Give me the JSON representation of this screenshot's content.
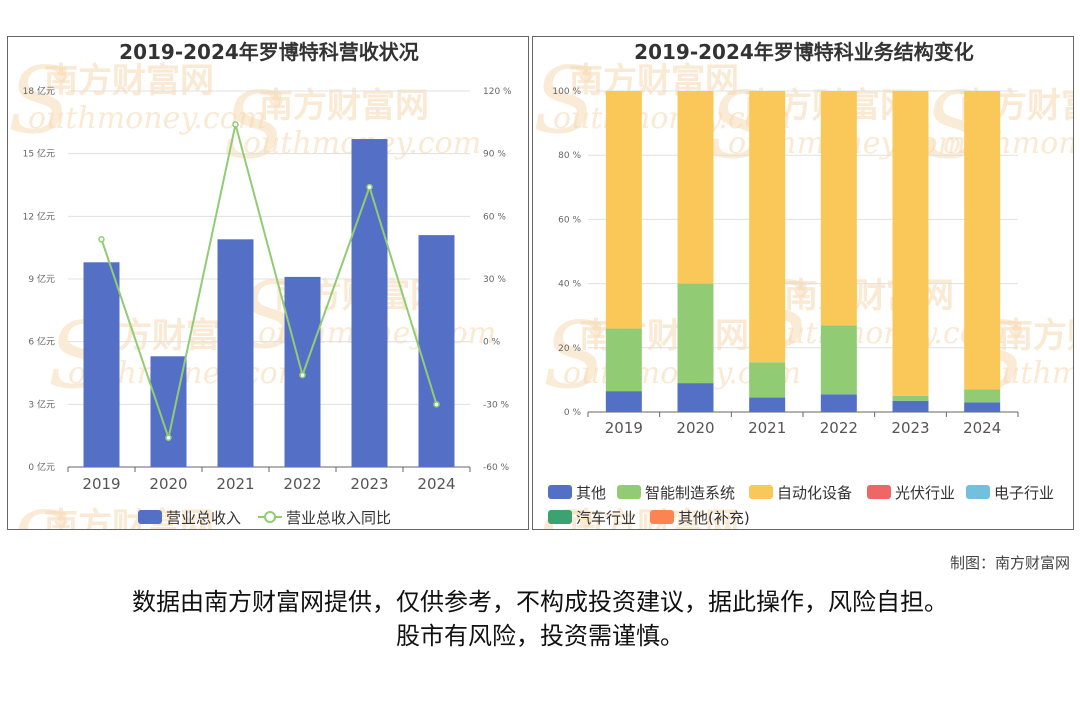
{
  "watermark": {
    "cn": "南方财富网",
    "en": "outhmoney.com",
    "letter": "S"
  },
  "colors": {
    "bar_blue": "#5470c6",
    "line_green": "#91cc75",
    "grid": "#e0e0e0",
    "axis": "#666666",
    "watermark": "#f6d7ae"
  },
  "chart_data": [
    {
      "type": "bar",
      "title": "2019-2024年罗博特科营收状况",
      "categories": [
        "2019",
        "2020",
        "2021",
        "2022",
        "2023",
        "2024"
      ],
      "y_left": {
        "ticks": [
          "0 亿元",
          "3 亿元",
          "6 亿元",
          "9 亿元",
          "12 亿元",
          "15 亿元",
          "18 亿元"
        ],
        "min": 0,
        "max": 18,
        "unit": "亿元"
      },
      "y_right": {
        "ticks": [
          "-60 %",
          "-30 %",
          "0 %",
          "30 %",
          "60 %",
          "90 %",
          "120 %"
        ],
        "min": -60,
        "max": 120,
        "unit": "%"
      },
      "series": [
        {
          "name": "营业总收入",
          "type": "bar",
          "axis": "left",
          "color": "#5470c6",
          "values": [
            9.8,
            5.3,
            10.9,
            9.1,
            15.7,
            11.1
          ]
        },
        {
          "name": "营业总收入同比",
          "type": "line",
          "axis": "right",
          "color": "#91cc75",
          "values": [
            49,
            -46,
            104,
            -16,
            74,
            -30
          ]
        }
      ],
      "legend_position": "bottom",
      "grid": true
    },
    {
      "type": "bar",
      "stacked": true,
      "title": "2019-2024年罗博特科业务结构变化",
      "categories": [
        "2019",
        "2020",
        "2021",
        "2022",
        "2023",
        "2024"
      ],
      "y": {
        "ticks": [
          "0 %",
          "20 %",
          "40 %",
          "60 %",
          "80 %",
          "100 %"
        ],
        "min": 0,
        "max": 100,
        "unit": "%"
      },
      "series": [
        {
          "name": "其他",
          "color": "#5470c6",
          "values": [
            6.5,
            9,
            4.5,
            5.5,
            3.5,
            3
          ]
        },
        {
          "name": "智能制造系统",
          "color": "#91cc75",
          "values": [
            19.5,
            31,
            11,
            21.5,
            1.5,
            4
          ]
        },
        {
          "name": "自动化设备",
          "color": "#fac858",
          "values": [
            74,
            60,
            84.5,
            73,
            95,
            93
          ]
        },
        {
          "name": "光伏行业",
          "color": "#ee6666",
          "values": [
            0,
            0,
            0,
            0,
            0,
            0
          ]
        },
        {
          "name": "电子行业",
          "color": "#73c0de",
          "values": [
            0,
            0,
            0,
            0,
            0,
            0
          ]
        },
        {
          "name": "汽车行业",
          "color": "#3ba272",
          "values": [
            0,
            0,
            0,
            0,
            0,
            0
          ]
        },
        {
          "name": "其他(补充)",
          "color": "#fc8452",
          "values": [
            0,
            0,
            0,
            0,
            0,
            0
          ]
        }
      ],
      "legend_position": "bottom",
      "grid": true
    }
  ],
  "credit": "制图：南方财富网",
  "disclaimer": {
    "line1": "数据由南方财富网提供，仅供参考，不构成投资建议，据此操作，风险自担。",
    "line2": "股市有风险，投资需谨慎。"
  }
}
